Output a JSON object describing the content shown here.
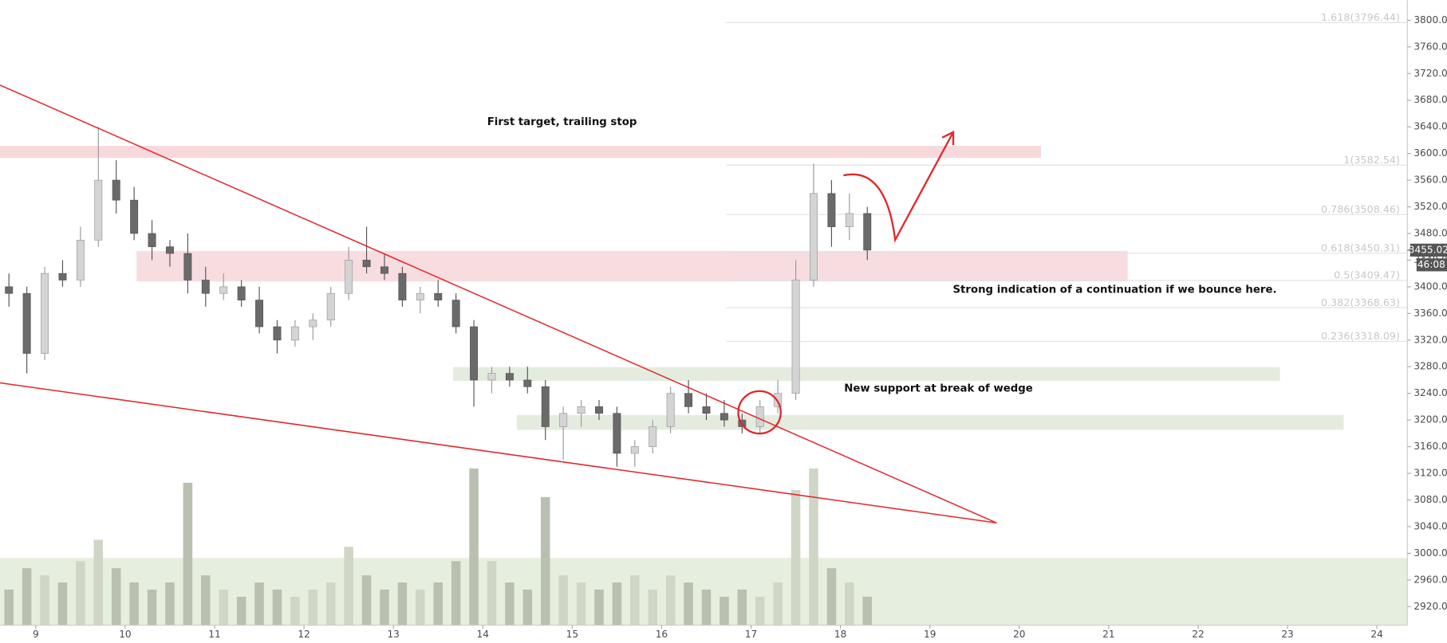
{
  "chart_data": {
    "type": "candlestick",
    "xlim": [
      8.6,
      24.34
    ],
    "ylim": [
      2892,
      3830
    ],
    "xticks": [
      9,
      10,
      11,
      12,
      13,
      14,
      15,
      16,
      17,
      18,
      19,
      20,
      21,
      22,
      23,
      24
    ],
    "yticks": [
      {
        "value": 2920,
        "label": "2920.00"
      },
      {
        "value": 2960,
        "label": "2960.00"
      },
      {
        "value": 3000,
        "label": "3000.00"
      },
      {
        "value": 3040,
        "label": "3040.00"
      },
      {
        "value": 3080,
        "label": "3080.00"
      },
      {
        "value": 3120,
        "label": "3120.00"
      },
      {
        "value": 3160,
        "label": "3160.00"
      },
      {
        "value": 3200,
        "label": "3200.00"
      },
      {
        "value": 3240,
        "label": "3240.00"
      },
      {
        "value": 3280,
        "label": "3280.00"
      },
      {
        "value": 3320,
        "label": "3320.00"
      },
      {
        "value": 3360,
        "label": "3360.00"
      },
      {
        "value": 3400,
        "label": "3400.00"
      },
      {
        "value": 3440,
        "label": "3440.00"
      },
      {
        "value": 3480,
        "label": "3480.00"
      },
      {
        "value": 3520,
        "label": "3520.00"
      },
      {
        "value": 3560,
        "label": "3560.00"
      },
      {
        "value": 3600,
        "label": "3600.00"
      },
      {
        "value": 3640,
        "label": "3640.00"
      },
      {
        "value": 3680,
        "label": "3680.00"
      },
      {
        "value": 3720,
        "label": "3720.00"
      },
      {
        "value": 3760,
        "label": "3760.00"
      },
      {
        "value": 3800,
        "label": "3800.00"
      }
    ],
    "up_color": "#d4d4d4",
    "down_color": "#6a6a6a",
    "x": [
      8.7,
      8.9,
      9.1,
      9.3,
      9.5,
      9.7,
      9.9,
      10.1,
      10.3,
      10.5,
      10.7,
      10.9,
      11.1,
      11.3,
      11.5,
      11.7,
      11.9,
      12.1,
      12.3,
      12.5,
      12.7,
      12.9,
      13.1,
      13.3,
      13.5,
      13.7,
      13.9,
      14.1,
      14.3,
      14.5,
      14.7,
      14.9,
      15.1,
      15.3,
      15.5,
      15.7,
      15.9,
      16.1,
      16.3,
      16.5,
      16.7,
      16.9,
      17.1,
      17.3,
      17.5,
      17.7,
      17.9,
      18.1,
      18.3
    ],
    "open": [
      3400,
      3390,
      3300,
      3420,
      3410,
      3470,
      3560,
      3530,
      3480,
      3460,
      3450,
      3410,
      3390,
      3400,
      3380,
      3340,
      3320,
      3340,
      3350,
      3390,
      3440,
      3430,
      3420,
      3380,
      3390,
      3380,
      3340,
      3260,
      3270,
      3260,
      3250,
      3190,
      3210,
      3220,
      3210,
      3150,
      3160,
      3190,
      3240,
      3220,
      3210,
      3200,
      3190,
      3220,
      3240,
      3410,
      3540,
      3490,
      3510
    ],
    "high": [
      3420,
      3400,
      3430,
      3440,
      3490,
      3640,
      3590,
      3550,
      3500,
      3470,
      3480,
      3430,
      3420,
      3410,
      3400,
      3350,
      3350,
      3360,
      3400,
      3460,
      3490,
      3450,
      3430,
      3400,
      3410,
      3390,
      3350,
      3280,
      3280,
      3280,
      3260,
      3220,
      3230,
      3230,
      3220,
      3170,
      3200,
      3250,
      3260,
      3240,
      3230,
      3210,
      3230,
      3260,
      3440,
      3585,
      3560,
      3540,
      3520
    ],
    "low": [
      3370,
      3270,
      3290,
      3400,
      3400,
      3460,
      3510,
      3470,
      3440,
      3430,
      3390,
      3370,
      3380,
      3370,
      3330,
      3300,
      3310,
      3320,
      3340,
      3380,
      3420,
      3410,
      3370,
      3360,
      3370,
      3330,
      3220,
      3240,
      3250,
      3240,
      3170,
      3140,
      3190,
      3200,
      3130,
      3130,
      3150,
      3180,
      3210,
      3200,
      3190,
      3180,
      3180,
      3210,
      3230,
      3400,
      3460,
      3470,
      3440
    ],
    "close": [
      3390,
      3300,
      3420,
      3410,
      3470,
      3560,
      3530,
      3480,
      3460,
      3450,
      3410,
      3390,
      3400,
      3380,
      3340,
      3320,
      3340,
      3350,
      3390,
      3440,
      3430,
      3420,
      3380,
      3390,
      3380,
      3340,
      3260,
      3270,
      3260,
      3250,
      3190,
      3210,
      3220,
      3210,
      3150,
      3160,
      3190,
      3240,
      3220,
      3210,
      3200,
      3190,
      3220,
      3240,
      3410,
      3540,
      3490,
      3510,
      3455
    ],
    "volume": [
      25,
      40,
      35,
      30,
      45,
      60,
      40,
      30,
      25,
      30,
      100,
      35,
      25,
      20,
      30,
      25,
      20,
      25,
      30,
      55,
      35,
      25,
      30,
      25,
      30,
      45,
      110,
      45,
      30,
      25,
      90,
      35,
      30,
      25,
      30,
      35,
      25,
      35,
      30,
      25,
      20,
      25,
      20,
      30,
      95,
      110,
      40,
      30,
      20
    ],
    "fib_levels": [
      {
        "label": "1.618(3796.44)",
        "value": 3796.44
      },
      {
        "label": "1(3582.54)",
        "value": 3582.54
      },
      {
        "label": "0.786(3508.46)",
        "value": 3508.46
      },
      {
        "label": "0.618(3450.31)",
        "value": 3450.31
      },
      {
        "label": "0.5(3409.47)",
        "value": 3409.47
      },
      {
        "label": "0.382(3368.63)",
        "value": 3368.63
      },
      {
        "label": "0.236(3318.09)",
        "value": 3318.09
      }
    ],
    "last_price": 3455.02,
    "countdown": "46:08",
    "annotations": [
      "First target, trailing stop",
      "Strong indication of a continuation if we bounce here.",
      "New support at break of wedge"
    ]
  }
}
